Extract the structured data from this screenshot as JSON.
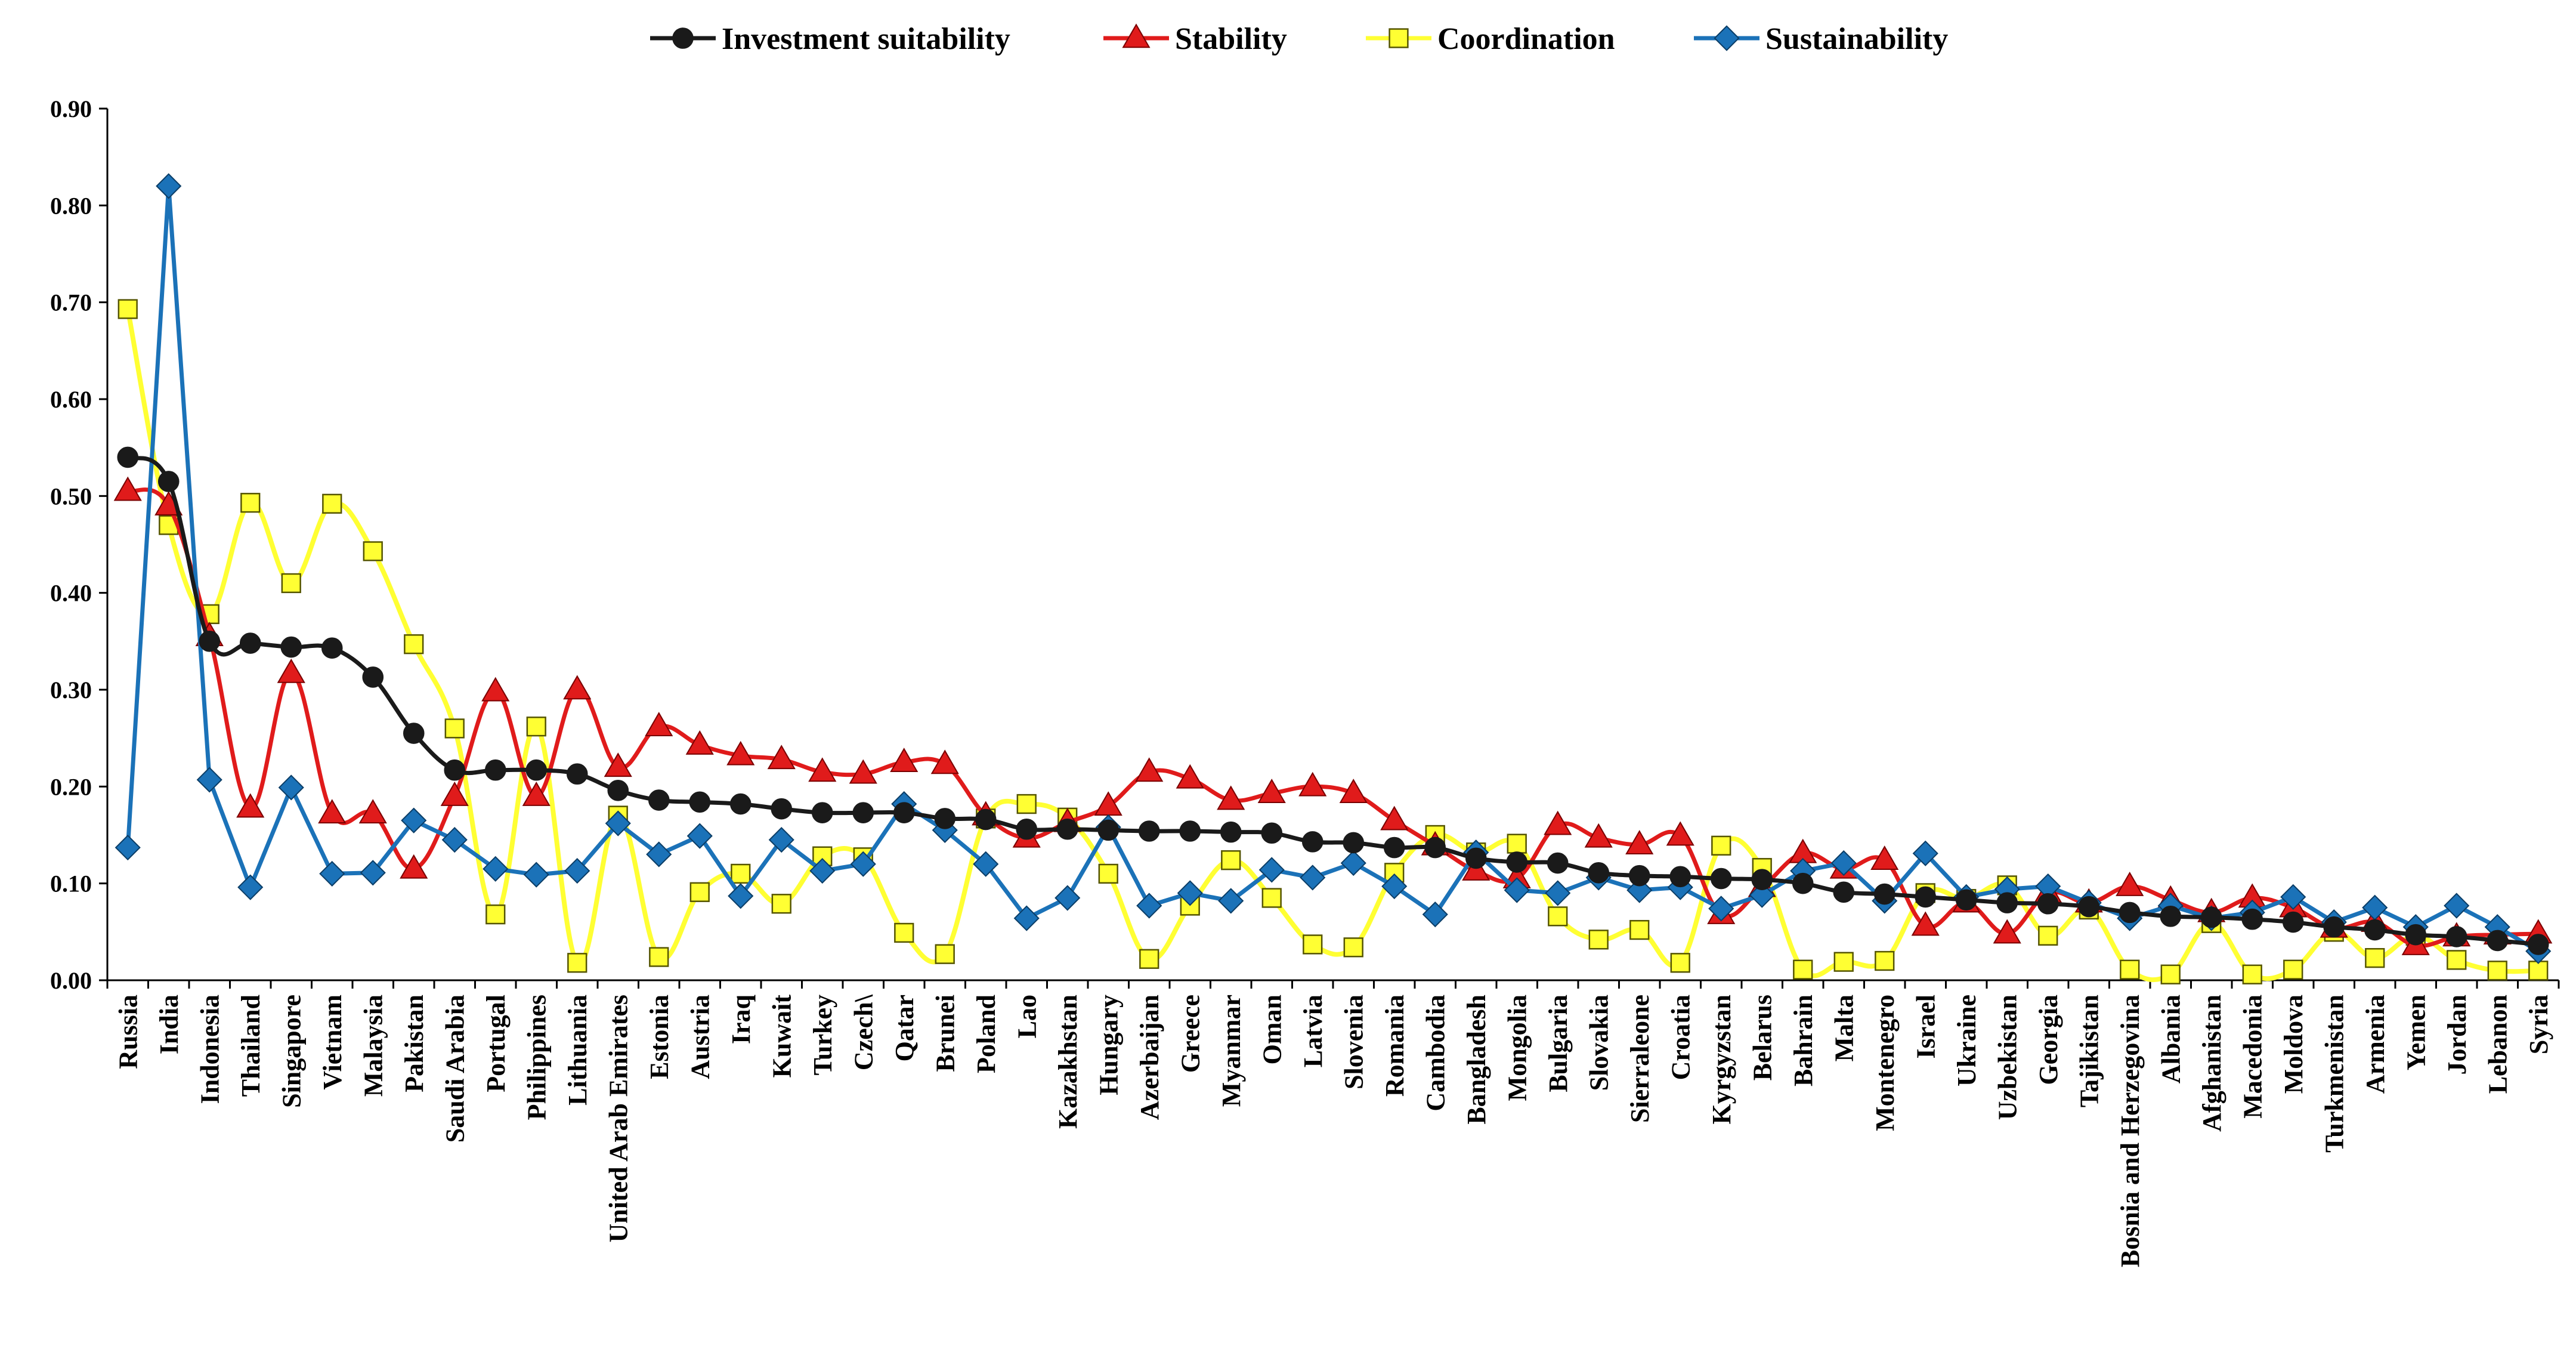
{
  "chart_data": {
    "type": "line",
    "title": "",
    "xlabel": "",
    "ylabel": "",
    "ylim": [
      0,
      0.9
    ],
    "yticks": [
      "0.00",
      "0.10",
      "0.20",
      "0.30",
      "0.40",
      "0.50",
      "0.60",
      "0.70",
      "0.80",
      "0.90"
    ],
    "grid": false,
    "legend_position": "top-center",
    "categories": [
      "Russia",
      "India",
      "Indonesia",
      "Thailand",
      "Singapore",
      "Vietnam",
      "Malaysia",
      "Pakistan",
      "Saudi Arabia",
      "Portugal",
      "Philippines",
      "Lithuania",
      "United Arab Emirates",
      "Estonia",
      "Austria",
      "Iraq",
      "Kuwait",
      "Turkey",
      "Czech\\",
      "Qatar",
      "Brunei",
      "Poland",
      "Lao",
      "Kazakhstan",
      "Hungary",
      "Azerbaijan",
      "Greece",
      "Myanmar",
      "Oman",
      "Latvia",
      "Slovenia",
      "Romania",
      "Cambodia",
      "Bangladesh",
      "Mongolia",
      "Bulgaria",
      "Slovakia",
      "Sierraleone",
      "Croatia",
      "Kyrgyzstan",
      "Belarus",
      "Bahrain",
      "Malta",
      "Montenegro",
      "Israel",
      "Ukraine",
      "Uzbekistan",
      "Georgia",
      "Tajikistan",
      "Bosnia and Herzegovina",
      "Albania",
      "Afghanistan",
      "Macedonia",
      "Moldova",
      "Turkmenistan",
      "Armenia",
      "Yemen",
      "Jordan",
      "Lebanon",
      "Syria"
    ],
    "series": [
      {
        "name": "Investment suitability",
        "color": "#1a1a1a",
        "marker": "circle",
        "values": [
          0.54,
          0.515,
          0.35,
          0.348,
          0.344,
          0.343,
          0.313,
          0.255,
          0.217,
          0.217,
          0.217,
          0.213,
          0.196,
          0.186,
          0.184,
          0.182,
          0.177,
          0.173,
          0.173,
          0.173,
          0.167,
          0.166,
          0.156,
          0.156,
          0.155,
          0.154,
          0.154,
          0.153,
          0.152,
          0.143,
          0.142,
          0.137,
          0.137,
          0.126,
          0.122,
          0.121,
          0.111,
          0.108,
          0.107,
          0.105,
          0.104,
          0.1,
          0.091,
          0.089,
          0.086,
          0.083,
          0.08,
          0.079,
          0.076,
          0.07,
          0.066,
          0.065,
          0.063,
          0.06,
          0.055,
          0.052,
          0.047,
          0.045,
          0.041,
          0.037
        ]
      },
      {
        "name": "Stability",
        "color": "#e01b1b",
        "marker": "triangle",
        "values": [
          0.505,
          0.49,
          0.355,
          0.178,
          0.317,
          0.172,
          0.172,
          0.115,
          0.19,
          0.298,
          0.19,
          0.3,
          0.22,
          0.262,
          0.243,
          0.232,
          0.228,
          0.215,
          0.213,
          0.225,
          0.223,
          0.17,
          0.147,
          0.163,
          0.18,
          0.215,
          0.208,
          0.186,
          0.193,
          0.2,
          0.193,
          0.165,
          0.139,
          0.113,
          0.105,
          0.16,
          0.147,
          0.14,
          0.149,
          0.068,
          0.096,
          0.131,
          0.115,
          0.124,
          0.056,
          0.08,
          0.048,
          0.09,
          0.08,
          0.097,
          0.083,
          0.07,
          0.085,
          0.075,
          0.054,
          0.06,
          0.036,
          0.045,
          0.047,
          0.048
        ]
      },
      {
        "name": "Coordination",
        "color": "#ffff33",
        "marker": "square",
        "values": [
          0.693,
          0.47,
          0.378,
          0.493,
          0.41,
          0.492,
          0.443,
          0.347,
          0.26,
          0.068,
          0.262,
          0.018,
          0.17,
          0.024,
          0.091,
          0.11,
          0.079,
          0.128,
          0.127,
          0.049,
          0.027,
          0.167,
          0.182,
          0.168,
          0.11,
          0.022,
          0.077,
          0.124,
          0.085,
          0.037,
          0.034,
          0.111,
          0.15,
          0.132,
          0.141,
          0.066,
          0.042,
          0.052,
          0.018,
          0.139,
          0.116,
          0.011,
          0.019,
          0.02,
          0.09,
          0.084,
          0.098,
          0.046,
          0.073,
          0.011,
          0.006,
          0.059,
          0.006,
          0.011,
          0.05,
          0.023,
          0.046,
          0.021,
          0.01,
          0.01
        ]
      },
      {
        "name": "Sustainability",
        "color": "#1b72b8",
        "marker": "diamond",
        "values": [
          0.137,
          0.82,
          0.207,
          0.096,
          0.199,
          0.11,
          0.111,
          0.165,
          0.145,
          0.115,
          0.109,
          0.113,
          0.162,
          0.13,
          0.149,
          0.087,
          0.145,
          0.113,
          0.12,
          0.182,
          0.155,
          0.12,
          0.064,
          0.085,
          0.158,
          0.077,
          0.09,
          0.082,
          0.114,
          0.106,
          0.121,
          0.097,
          0.068,
          0.132,
          0.093,
          0.09,
          0.106,
          0.093,
          0.096,
          0.074,
          0.088,
          0.113,
          0.121,
          0.082,
          0.131,
          0.086,
          0.094,
          0.097,
          0.08,
          0.064,
          0.077,
          0.064,
          0.07,
          0.086,
          0.06,
          0.075,
          0.055,
          0.077,
          0.055,
          0.03
        ]
      }
    ]
  }
}
